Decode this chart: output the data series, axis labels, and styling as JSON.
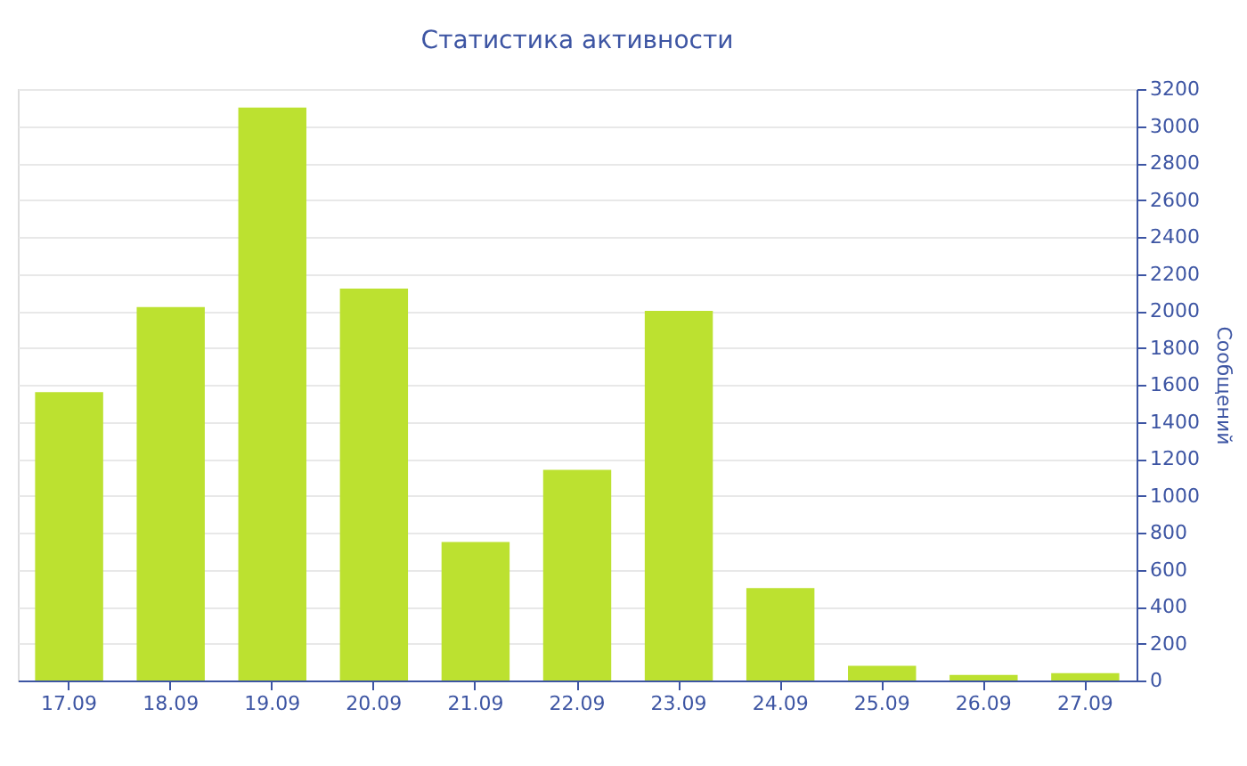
{
  "chart_data": {
    "type": "bar",
    "title": "Статистика активности",
    "ylabel": "Сообщений",
    "categories": [
      "17.09",
      "18.09",
      "19.09",
      "20.09",
      "21.09",
      "22.09",
      "23.09",
      "24.09",
      "25.09",
      "26.09",
      "27.09"
    ],
    "values": [
      1560,
      2020,
      3100,
      2120,
      750,
      1140,
      2000,
      500,
      80,
      30,
      40
    ],
    "color": "#bce130",
    "ylim": [
      0,
      3200
    ],
    "yticks": [
      0,
      200,
      400,
      600,
      800,
      1000,
      1200,
      1400,
      1600,
      1800,
      2000,
      2200,
      2400,
      2600,
      2800,
      3000,
      3200
    ],
    "grid": true
  }
}
